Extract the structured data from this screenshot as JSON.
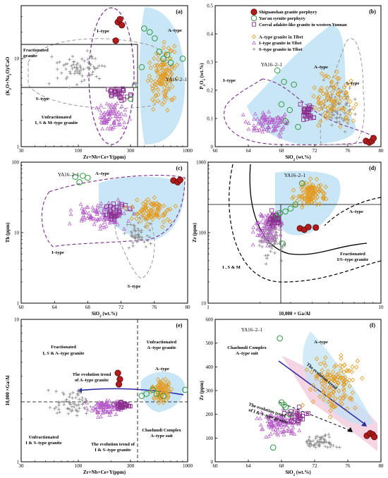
{
  "figure": {
    "legend": {
      "items": [
        {
          "name": "Shiguanshan granite porphyry",
          "marker": "filled-circle",
          "color": "#b01b1b"
        },
        {
          "name": "Yao'an syenite porphyry",
          "marker": "open-circle",
          "color": "#2e9a3e"
        },
        {
          "name": "Coeval adakite-like granite in western Yunnan",
          "marker": "open-square",
          "color": "#8b2f8f"
        },
        {
          "name": "A–type granite in Tibet",
          "marker": "diamond",
          "color": "#e39b20"
        },
        {
          "name": "I–type granite in Tibet",
          "marker": "triangle",
          "color": "#b45bc8"
        },
        {
          "name": "S–type granite in Tibet",
          "marker": "plus",
          "color": "#8c8c8c"
        }
      ]
    },
    "colors": {
      "a_field": "#bfe2f5",
      "i_boundary": "#7a2f8f",
      "s_boundary": "#9a9a9a",
      "trend_arrow": "#2a2aa0",
      "pink_band": "#f4cfe0"
    }
  },
  "chart_data": [
    {
      "panel": "(a)",
      "type": "scatter",
      "xlabel": "Zr+Nb+Ce+Y(ppm)",
      "ylabel": "(K2O+Na2O)/CaO",
      "xscale": "log",
      "yscale": "log",
      "xlim": [
        30,
        1000
      ],
      "ylim": [
        1,
        40
      ],
      "xticks": [
        "30",
        "100",
        "300",
        "1000"
      ],
      "yticks": [
        "1",
        "10"
      ],
      "annotations": [
        "I–type",
        "A–type",
        "Fractionated granite",
        "S–type",
        "Unfractionated I, S & M–type granite",
        "YA16–2–1"
      ],
      "series": [
        {
          "name": "Shiguanshan granite porphyry",
          "points": [
            [
              230,
              26
            ],
            [
              240,
              28
            ],
            [
              250,
              24
            ],
            [
              220,
              16
            ]
          ]
        },
        {
          "name": "Yao'an syenite porphyry",
          "points": [
            [
              400,
              22
            ],
            [
              450,
              20
            ],
            [
              500,
              17
            ],
            [
              550,
              12
            ],
            [
              600,
              10
            ],
            [
              650,
              11
            ],
            [
              700,
              9
            ],
            [
              900,
              10
            ],
            [
              380,
              8
            ],
            [
              330,
              5
            ],
            [
              300,
              3.5
            ]
          ]
        }
      ]
    },
    {
      "panel": "(b)",
      "type": "scatter",
      "xlabel": "SiO2 (wt.%)",
      "ylabel": "P2O5 (wt.%)",
      "xlim": [
        60,
        80
      ],
      "ylim": [
        0,
        0.5
      ],
      "xticks": [
        "60",
        "64",
        "68",
        "72",
        "76",
        "80"
      ],
      "yticks": [
        "0",
        "0.1",
        "0.2",
        "0.3",
        "0.4",
        "0.5"
      ],
      "annotations": [
        "A–type",
        "I–type",
        "S–type",
        "YA16–2–1"
      ],
      "series": [
        {
          "name": "Shiguanshan granite porphyry",
          "points": [
            [
              78.2,
              0.02
            ],
            [
              78.6,
              0.015
            ],
            [
              78.9,
              0.02
            ],
            [
              79.1,
              0.03
            ]
          ]
        },
        {
          "name": "Yao'an syenite porphyry",
          "points": [
            [
              67.5,
              0.27
            ],
            [
              68.3,
              0.23
            ],
            [
              69.5,
              0.22
            ],
            [
              68.0,
              0.15
            ],
            [
              69.0,
              0.13
            ],
            [
              68.5,
              0.09
            ],
            [
              70.0,
              0.07
            ]
          ]
        }
      ]
    },
    {
      "panel": "(c)",
      "type": "scatter",
      "xlabel": "SiO2 (wt.%)",
      "ylabel": "Th (ppm)",
      "xscale": "linear",
      "yscale": "log",
      "xlim": [
        60,
        80
      ],
      "ylim": [
        1,
        100
      ],
      "xticks": [
        "60",
        "64",
        "68",
        "72",
        "76",
        "80"
      ],
      "yticks": [
        "1",
        "10",
        "100"
      ],
      "annotations": [
        "A–type",
        "I–type",
        "S–type",
        "YA16–2–1"
      ],
      "series": [
        {
          "name": "Shiguanshan granite porphyry",
          "points": [
            [
              78.3,
              55
            ],
            [
              78.8,
              52
            ],
            [
              79.1,
              56
            ]
          ]
        },
        {
          "name": "Yao'an syenite porphyry",
          "points": [
            [
              66.5,
              62
            ],
            [
              67.4,
              64
            ],
            [
              68.0,
              60
            ],
            [
              67.0,
              52
            ]
          ]
        }
      ]
    },
    {
      "panel": "(d)",
      "type": "scatter",
      "xlabel": "10,000 × Ga/Al",
      "ylabel": "Zr (ppm)",
      "xscale": "log",
      "yscale": "log",
      "xlim": [
        1,
        10
      ],
      "ylim": [
        10,
        1000
      ],
      "xticks": [
        "1",
        "10"
      ],
      "yticks": [
        "10",
        "100",
        "1000"
      ],
      "annotations": [
        "A–type",
        "I , S & M",
        "Fractionated I/S–type granite",
        "YA16–2–1"
      ],
      "series": [
        {
          "name": "Shiguanshan granite porphyry",
          "points": [
            [
              3.4,
              115
            ],
            [
              3.6,
              110
            ],
            [
              3.8,
              120
            ],
            [
              4.2,
              118
            ]
          ]
        },
        {
          "name": "Yao'an syenite porphyry",
          "points": [
            [
              3.5,
              500
            ],
            [
              3.2,
              250
            ],
            [
              3.0,
              220
            ],
            [
              2.8,
              200
            ],
            [
              2.6,
              190
            ],
            [
              2.5,
              170
            ],
            [
              2.7,
              70
            ]
          ]
        }
      ]
    },
    {
      "panel": "(e)",
      "type": "scatter",
      "xlabel": "Zr+Nb+Ce+Y(ppm)",
      "ylabel": "10,000 ×Ga/Al",
      "xscale": "log",
      "yscale": "log",
      "xlim": [
        30,
        1000
      ],
      "ylim": [
        1,
        10
      ],
      "xticks": [
        "30",
        "100",
        "300",
        "1000"
      ],
      "yticks": [
        "1",
        "10"
      ],
      "annotations": [
        "Fractionated I, S & A–type granite",
        "Unfractionated A–type granite",
        "A–type",
        "The evolution trend of A–type granite",
        "Unfractionated I & S–type granite",
        "The evolution trend of I & S–type granite",
        "Chaelundi Complex A–type suit"
      ],
      "series": [
        {
          "name": "Shiguanshan granite porphyry",
          "points": [
            [
              230,
              4.2
            ],
            [
              240,
              3.8
            ],
            [
              235,
              3.5
            ]
          ]
        },
        {
          "name": "Yao'an syenite porphyry",
          "points": [
            [
              380,
              2.9
            ],
            [
              420,
              3.0
            ],
            [
              480,
              3.2
            ],
            [
              520,
              3.0
            ],
            [
              600,
              2.9
            ],
            [
              950,
              3.2
            ]
          ]
        }
      ]
    },
    {
      "panel": "(f)",
      "type": "scatter",
      "xlabel": "SiO2 (wt.%)",
      "ylabel": "Zr (ppm)",
      "xlim": [
        60,
        80
      ],
      "ylim": [
        0,
        600
      ],
      "xticks": [
        "60",
        "64",
        "68",
        "72",
        "76",
        "80"
      ],
      "yticks": [
        "0",
        "100",
        "200",
        "300",
        "400",
        "500",
        "600"
      ],
      "annotations": [
        "A–type",
        "Chaelundi Complex A–type suit",
        "The evolution trend of A–type granite",
        "The evolution trend of I & S–type granite",
        "YA16–2–1"
      ],
      "series": [
        {
          "name": "Shiguanshan granite porphyry",
          "points": [
            [
              78.3,
              110
            ],
            [
              78.7,
              120
            ],
            [
              79.0,
              115
            ],
            [
              79.2,
              105
            ]
          ]
        },
        {
          "name": "Yao'an syenite porphyry",
          "points": [
            [
              67.8,
              520
            ],
            [
              68.0,
              250
            ],
            [
              68.3,
              240
            ],
            [
              68.5,
              230
            ],
            [
              69.0,
              200
            ],
            [
              67.0,
              60
            ]
          ]
        }
      ]
    }
  ]
}
